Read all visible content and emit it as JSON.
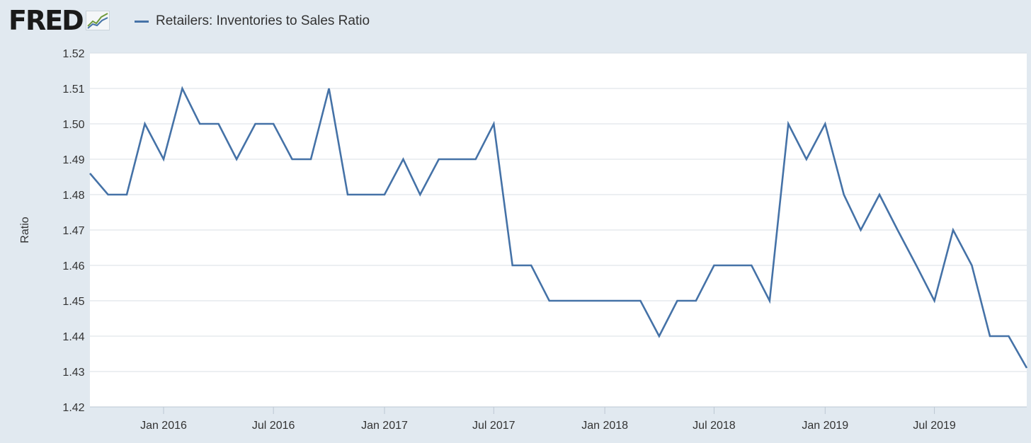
{
  "header": {
    "logo_text": "FRED",
    "logo_icon": "line-chart-icon",
    "legend_label": "Retailers: Inventories to Sales Ratio"
  },
  "colors": {
    "series": "#4572a7",
    "background": "#e1e9f0",
    "plot": "#ffffff",
    "grid": "#d8dfe6"
  },
  "chart_data": {
    "type": "line",
    "title": "",
    "xlabel": "",
    "ylabel": "Ratio",
    "ylim": [
      1.42,
      1.52
    ],
    "yticks": [
      "1.42",
      "1.43",
      "1.44",
      "1.45",
      "1.46",
      "1.47",
      "1.48",
      "1.49",
      "1.50",
      "1.51",
      "1.52"
    ],
    "xlim": [
      "2015-09-01",
      "2019-12-01"
    ],
    "xticks": [
      {
        "date": "2016-01-01",
        "label": "Jan 2016"
      },
      {
        "date": "2016-07-01",
        "label": "Jul 2016"
      },
      {
        "date": "2017-01-01",
        "label": "Jan 2017"
      },
      {
        "date": "2017-07-01",
        "label": "Jul 2017"
      },
      {
        "date": "2018-01-01",
        "label": "Jan 2018"
      },
      {
        "date": "2018-07-01",
        "label": "Jul 2018"
      },
      {
        "date": "2019-01-01",
        "label": "Jan 2019"
      },
      {
        "date": "2019-07-01",
        "label": "Jul 2019"
      }
    ],
    "grid": true,
    "legend": "top-left",
    "series": [
      {
        "name": "Retailers: Inventories to Sales Ratio",
        "x": [
          "2015-09",
          "2015-10",
          "2015-11",
          "2015-12",
          "2016-01",
          "2016-02",
          "2016-03",
          "2016-04",
          "2016-05",
          "2016-06",
          "2016-07",
          "2016-08",
          "2016-09",
          "2016-10",
          "2016-11",
          "2016-12",
          "2017-01",
          "2017-02",
          "2017-03",
          "2017-04",
          "2017-05",
          "2017-06",
          "2017-07",
          "2017-08",
          "2017-09",
          "2017-10",
          "2017-11",
          "2017-12",
          "2018-01",
          "2018-02",
          "2018-03",
          "2018-04",
          "2018-05",
          "2018-06",
          "2018-07",
          "2018-08",
          "2018-09",
          "2018-10",
          "2018-11",
          "2018-12",
          "2019-01",
          "2019-02",
          "2019-03",
          "2019-04",
          "2019-05",
          "2019-06",
          "2019-07",
          "2019-08",
          "2019-09",
          "2019-10",
          "2019-11",
          "2019-12"
        ],
        "values": [
          1.486,
          1.48,
          1.48,
          1.5,
          1.49,
          1.51,
          1.5,
          1.5,
          1.49,
          1.5,
          1.5,
          1.49,
          1.49,
          1.51,
          1.48,
          1.48,
          1.48,
          1.49,
          1.48,
          1.49,
          1.49,
          1.49,
          1.5,
          1.46,
          1.46,
          1.45,
          1.45,
          1.45,
          1.45,
          1.45,
          1.45,
          1.44,
          1.45,
          1.45,
          1.46,
          1.46,
          1.46,
          1.45,
          1.5,
          1.49,
          1.5,
          1.48,
          1.47,
          1.48,
          1.47,
          1.46,
          1.45,
          1.47,
          1.46,
          1.44,
          1.44,
          1.431
        ]
      }
    ]
  }
}
